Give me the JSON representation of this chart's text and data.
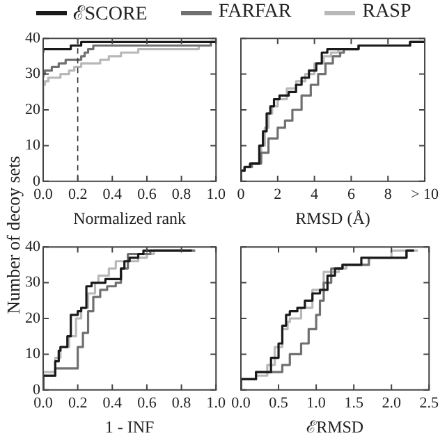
{
  "chart_data": [
    {
      "type": "step",
      "xlabel": "Normalized rank",
      "ylabel": "Number of decoy sets",
      "legend": "top",
      "grid": false,
      "xlim": [
        0,
        1
      ],
      "xticks": [
        {
          "value": 0,
          "label": "0.0"
        },
        {
          "value": 0.2,
          "label": "0.2"
        },
        {
          "value": 0.4,
          "label": "0.4"
        },
        {
          "value": 0.6,
          "label": "0.6"
        },
        {
          "value": 0.8,
          "label": "0.8"
        },
        {
          "value": 1,
          "label": "1.0"
        }
      ],
      "ylim": [
        0,
        40
      ],
      "yticks": [
        0,
        10,
        20,
        30,
        40
      ],
      "ref_lines": [
        {
          "axis": "x",
          "value": 0.2,
          "line_style": "dashed"
        }
      ],
      "series": [
        {
          "name": "ℰSCORE",
          "color": "#1a1a1a",
          "x": [
            0,
            0.16,
            0.22,
            0.29,
            1
          ],
          "values": [
            36,
            37,
            38,
            39,
            39
          ]
        },
        {
          "name": "FARFAR",
          "color": "#707070",
          "x": [
            0,
            0.01,
            0.05,
            0.09,
            0.13,
            0.22,
            0.24,
            0.26,
            0.29,
            0.97,
            0.99,
            1
          ],
          "values": [
            29,
            30,
            31,
            32,
            33,
            34,
            35,
            36,
            37,
            38,
            39,
            39
          ]
        },
        {
          "name": "RASP",
          "color": "#b8b8b8",
          "x": [
            0,
            0.01,
            0.03,
            0.1,
            0.15,
            0.18,
            0.22,
            0.33,
            0.38,
            0.45,
            0.55,
            0.9,
            0.97,
            1
          ],
          "values": [
            21,
            27,
            28,
            29,
            30,
            31,
            32,
            33,
            34,
            35,
            36,
            37,
            38,
            39
          ]
        }
      ]
    },
    {
      "type": "step",
      "xlabel": "RMSD (Å)",
      "grid": false,
      "tick_labels": "x",
      "xlim": [
        0,
        10
      ],
      "xticks": [
        0,
        2,
        4,
        6,
        8,
        {
          "value": 10,
          "label": "> 10"
        }
      ],
      "ylim": [
        0,
        40
      ],
      "yticks": [
        0,
        10,
        20,
        30,
        40
      ],
      "series": [
        {
          "color": "#1a1a1a",
          "x": [
            0,
            0.2,
            0.5,
            1.0,
            1.2,
            1.4,
            1.6,
            1.8,
            2.1,
            2.6,
            3.0,
            3.3,
            3.7,
            4.1,
            4.4,
            4.7,
            6.4,
            9.2,
            9.9,
            10
          ],
          "values": [
            0,
            3,
            4,
            5,
            10,
            14,
            19,
            21,
            23,
            24,
            25,
            27,
            29,
            31,
            33,
            36,
            37,
            38,
            39,
            39
          ]
        },
        {
          "color": "#707070",
          "x": [
            0,
            0.2,
            0.6,
            1.1,
            1.5,
            2.0,
            2.4,
            2.8,
            3.3,
            3.8,
            4.2,
            4.6,
            5.0,
            5.4,
            5.6,
            6.4,
            9.2,
            9.9,
            10
          ],
          "values": [
            0,
            3,
            4,
            5,
            8,
            12,
            15,
            17,
            20,
            24,
            27,
            30,
            33,
            35,
            36,
            37,
            38,
            39,
            39
          ]
        },
        {
          "color": "#b8b8b8",
          "x": [
            0,
            0.2,
            0.5,
            1.1,
            1.3,
            1.5,
            1.7,
            2.0,
            2.5,
            3.0,
            3.5,
            4.0,
            4.5,
            4.9,
            5.3,
            6.4,
            9.2,
            9.9,
            10
          ],
          "values": [
            0,
            3,
            4,
            5,
            10,
            15,
            19,
            21,
            23,
            26,
            28,
            30,
            33,
            35,
            36,
            37,
            38,
            39,
            39
          ]
        }
      ]
    },
    {
      "type": "step",
      "xlabel": "1 - INF",
      "grid": false,
      "xlim": [
        0,
        1
      ],
      "xticks": [
        {
          "value": 0,
          "label": "0.0"
        },
        {
          "value": 0.2,
          "label": "0.2"
        },
        {
          "value": 0.4,
          "label": "0.4"
        },
        {
          "value": 0.6,
          "label": "0.6"
        },
        {
          "value": 0.8,
          "label": "0.8"
        },
        {
          "value": 1,
          "label": "1.0"
        }
      ],
      "ylim": [
        0,
        40
      ],
      "yticks": [
        0,
        10,
        20,
        30,
        40
      ],
      "series": [
        {
          "color": "#1a1a1a",
          "x": [
            0,
            0.07,
            0.09,
            0.1,
            0.14,
            0.16,
            0.2,
            0.22,
            0.25,
            0.28,
            0.36,
            0.45,
            0.47,
            0.5,
            0.55,
            0.58,
            0.86
          ],
          "values": [
            0,
            4,
            8,
            11,
            12,
            15,
            21,
            22,
            23,
            29,
            30,
            31,
            34,
            36,
            37,
            38,
            39
          ]
        },
        {
          "color": "#707070",
          "x": [
            0,
            0.07,
            0.2,
            0.23,
            0.26,
            0.29,
            0.33,
            0.37,
            0.42,
            0.45,
            0.49,
            0.62,
            0.88
          ],
          "values": [
            0,
            4,
            6,
            12,
            16,
            22,
            26,
            28,
            29,
            30,
            34,
            38,
            39
          ]
        },
        {
          "color": "#b8b8b8",
          "x": [
            0,
            0.07,
            0.1,
            0.15,
            0.19,
            0.22,
            0.26,
            0.3,
            0.32,
            0.38,
            0.42,
            0.55,
            0.6,
            0.64,
            0.87
          ],
          "values": [
            0,
            5,
            9,
            12,
            15,
            20,
            23,
            27,
            30,
            32,
            34,
            36,
            37,
            38,
            39
          ]
        }
      ]
    },
    {
      "type": "step",
      "xlabel": "ℰRMSD",
      "grid": false,
      "tick_labels": "x",
      "xlim": [
        0,
        2.5
      ],
      "xticks": [
        {
          "value": 0,
          "label": "0.0"
        },
        {
          "value": 0.5,
          "label": "0.5"
        },
        {
          "value": 1,
          "label": "1.0"
        },
        {
          "value": 1.5,
          "label": "1.5"
        },
        {
          "value": 2,
          "label": "2.0"
        },
        {
          "value": 2.5,
          "label": "2.5"
        }
      ],
      "ylim": [
        0,
        40
      ],
      "yticks": [
        0,
        10,
        20,
        30,
        40
      ],
      "series": [
        {
          "color": "#1a1a1a",
          "x": [
            0,
            0.2,
            0.4,
            0.5,
            0.55,
            0.6,
            0.65,
            0.75,
            0.85,
            0.95,
            1.05,
            1.15,
            1.25,
            1.35,
            1.6,
            2.2,
            2.3
          ],
          "values": [
            0,
            3,
            5,
            9,
            13,
            18,
            21,
            22,
            23,
            25,
            27,
            28,
            32,
            34,
            35,
            37,
            39
          ]
        },
        {
          "color": "#707070",
          "x": [
            0,
            0.2,
            0.55,
            0.65,
            0.8,
            0.9,
            1.0,
            1.05,
            1.1,
            1.2,
            1.35,
            1.7,
            2.2,
            2.3
          ],
          "values": [
            0,
            3,
            5,
            7,
            10,
            13,
            17,
            21,
            25,
            30,
            34,
            35,
            37,
            39
          ]
        },
        {
          "color": "#b8b8b8",
          "x": [
            0,
            0.2,
            0.35,
            0.45,
            0.55,
            0.62,
            0.65,
            0.8,
            0.95,
            1.1,
            1.3,
            1.4,
            1.7,
            2.0,
            2.35
          ],
          "values": [
            0,
            3,
            4,
            7,
            12,
            17,
            19,
            20,
            23,
            28,
            33,
            34,
            35,
            37,
            39
          ]
        }
      ]
    }
  ]
}
